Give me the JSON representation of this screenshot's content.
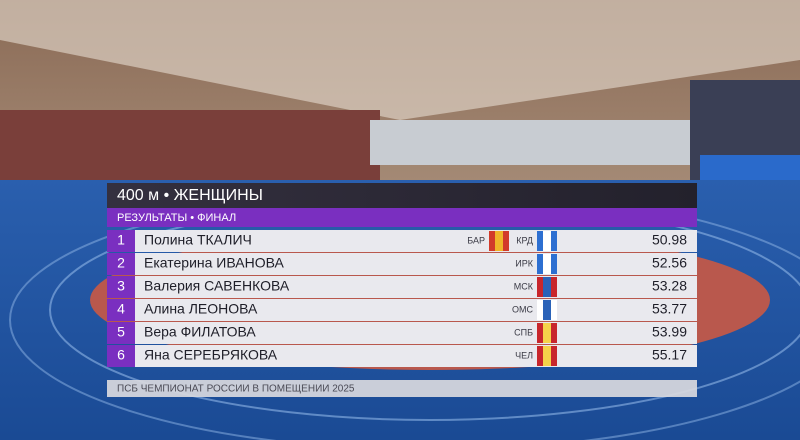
{
  "header": {
    "title": "400 м • ЖЕНЩИНЫ",
    "subtitle": "РЕЗУЛЬТАТЫ • ФИНАЛ"
  },
  "table": {
    "rows": [
      {
        "rank": "1",
        "name": "Полина ТКАЛИЧ",
        "regions": [
          "БАР",
          "КРД"
        ],
        "result": "50.98"
      },
      {
        "rank": "2",
        "name": "Екатерина ИВАНОВА",
        "regions": [
          "ИРК"
        ],
        "result": "52.56"
      },
      {
        "rank": "3",
        "name": "Валерия САВЕНКОВА",
        "regions": [
          "МСК"
        ],
        "result": "53.28"
      },
      {
        "rank": "4",
        "name": "Алина ЛЕОНОВА",
        "regions": [
          "ОМС"
        ],
        "result": "53.77"
      },
      {
        "rank": "5",
        "name": "Вера ФИЛАТОВА",
        "regions": [
          "СПБ"
        ],
        "result": "53.99"
      },
      {
        "rank": "6",
        "name": "Яна СЕРЕБРЯКОВА",
        "regions": [
          "ЧЕЛ"
        ],
        "result": "55.17"
      }
    ]
  },
  "footer": "ПСБ ЧЕМПИОНАТ РОССИИ В ПОМЕЩЕНИИ 2025"
}
